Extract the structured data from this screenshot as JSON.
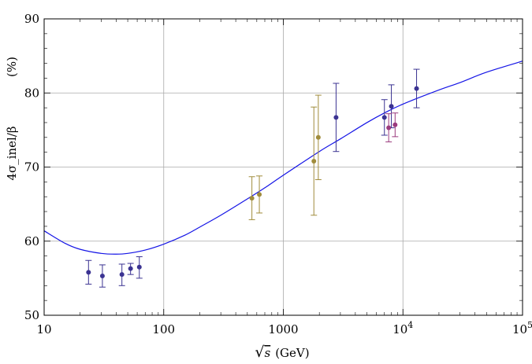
{
  "chart_data": {
    "type": "scatter",
    "title": "",
    "xlabel_math": "√s",
    "xlabel_unit": "(GeV)",
    "ylabel": "4σ_inel/β",
    "ylabel_unit": "(%)",
    "xscale": "log",
    "xlim": [
      10,
      100000
    ],
    "ylim": [
      50,
      90
    ],
    "grid": true,
    "x_ticks": [
      {
        "value": 10,
        "label": "10"
      },
      {
        "value": 100,
        "label": "100"
      },
      {
        "value": 1000,
        "label": "1000"
      },
      {
        "value": 10000,
        "label": "10",
        "exp": "4"
      },
      {
        "value": 100000,
        "label": "10",
        "exp": "5"
      }
    ],
    "y_ticks": [
      {
        "value": 50,
        "label": "50"
      },
      {
        "value": 60,
        "label": "60"
      },
      {
        "value": 70,
        "label": "70"
      },
      {
        "value": 80,
        "label": "80"
      },
      {
        "value": 90,
        "label": "90"
      }
    ],
    "series": [
      {
        "color": "#3b3392",
        "points": [
          {
            "x": 23.5,
            "y": 55.8,
            "lo": 54.2,
            "hi": 57.4
          },
          {
            "x": 30.7,
            "y": 55.3,
            "lo": 53.8,
            "hi": 56.8
          },
          {
            "x": 44.7,
            "y": 55.5,
            "lo": 54.0,
            "hi": 56.9
          },
          {
            "x": 52.8,
            "y": 56.3,
            "lo": 55.5,
            "hi": 57.0
          },
          {
            "x": 62.5,
            "y": 56.5,
            "lo": 55.0,
            "hi": 57.9
          },
          {
            "x": 2760,
            "y": 76.7,
            "lo": 72.1,
            "hi": 81.3
          },
          {
            "x": 7000,
            "y": 76.7,
            "lo": 74.3,
            "hi": 79.1
          },
          {
            "x": 8000,
            "y": 78.2,
            "lo": 75.3,
            "hi": 81.1
          },
          {
            "x": 13000,
            "y": 80.6,
            "lo": 78.0,
            "hi": 83.2
          }
        ]
      },
      {
        "color": "#a08c3c",
        "points": [
          {
            "x": 546,
            "y": 65.8,
            "lo": 62.9,
            "hi": 68.7
          },
          {
            "x": 630,
            "y": 66.3,
            "lo": 63.8,
            "hi": 68.8
          },
          {
            "x": 1800,
            "y": 70.8,
            "lo": 63.5,
            "hi": 78.1
          },
          {
            "x": 1960,
            "y": 74.0,
            "lo": 68.3,
            "hi": 79.7
          }
        ]
      },
      {
        "color": "#9b3b7e",
        "points": [
          {
            "x": 7600,
            "y": 75.3,
            "lo": 73.4,
            "hi": 77.2
          },
          {
            "x": 8600,
            "y": 75.7,
            "lo": 74.1,
            "hi": 77.3
          }
        ]
      }
    ],
    "curve": {
      "color": "#1515e6",
      "points": [
        [
          10,
          61.4
        ],
        [
          15,
          59.7
        ],
        [
          20,
          58.9
        ],
        [
          30,
          58.35
        ],
        [
          40,
          58.25
        ],
        [
          50,
          58.35
        ],
        [
          70,
          58.8
        ],
        [
          100,
          59.6
        ],
        [
          150,
          60.8
        ],
        [
          200,
          61.9
        ],
        [
          300,
          63.5
        ],
        [
          500,
          65.7
        ],
        [
          700,
          67.2
        ],
        [
          1000,
          68.9
        ],
        [
          2000,
          72.1
        ],
        [
          3000,
          73.8
        ],
        [
          5000,
          76.0
        ],
        [
          7000,
          77.3
        ],
        [
          10000,
          78.5
        ],
        [
          20000,
          80.4
        ],
        [
          30000,
          81.4
        ],
        [
          50000,
          82.8
        ],
        [
          100000,
          84.3
        ]
      ]
    }
  }
}
